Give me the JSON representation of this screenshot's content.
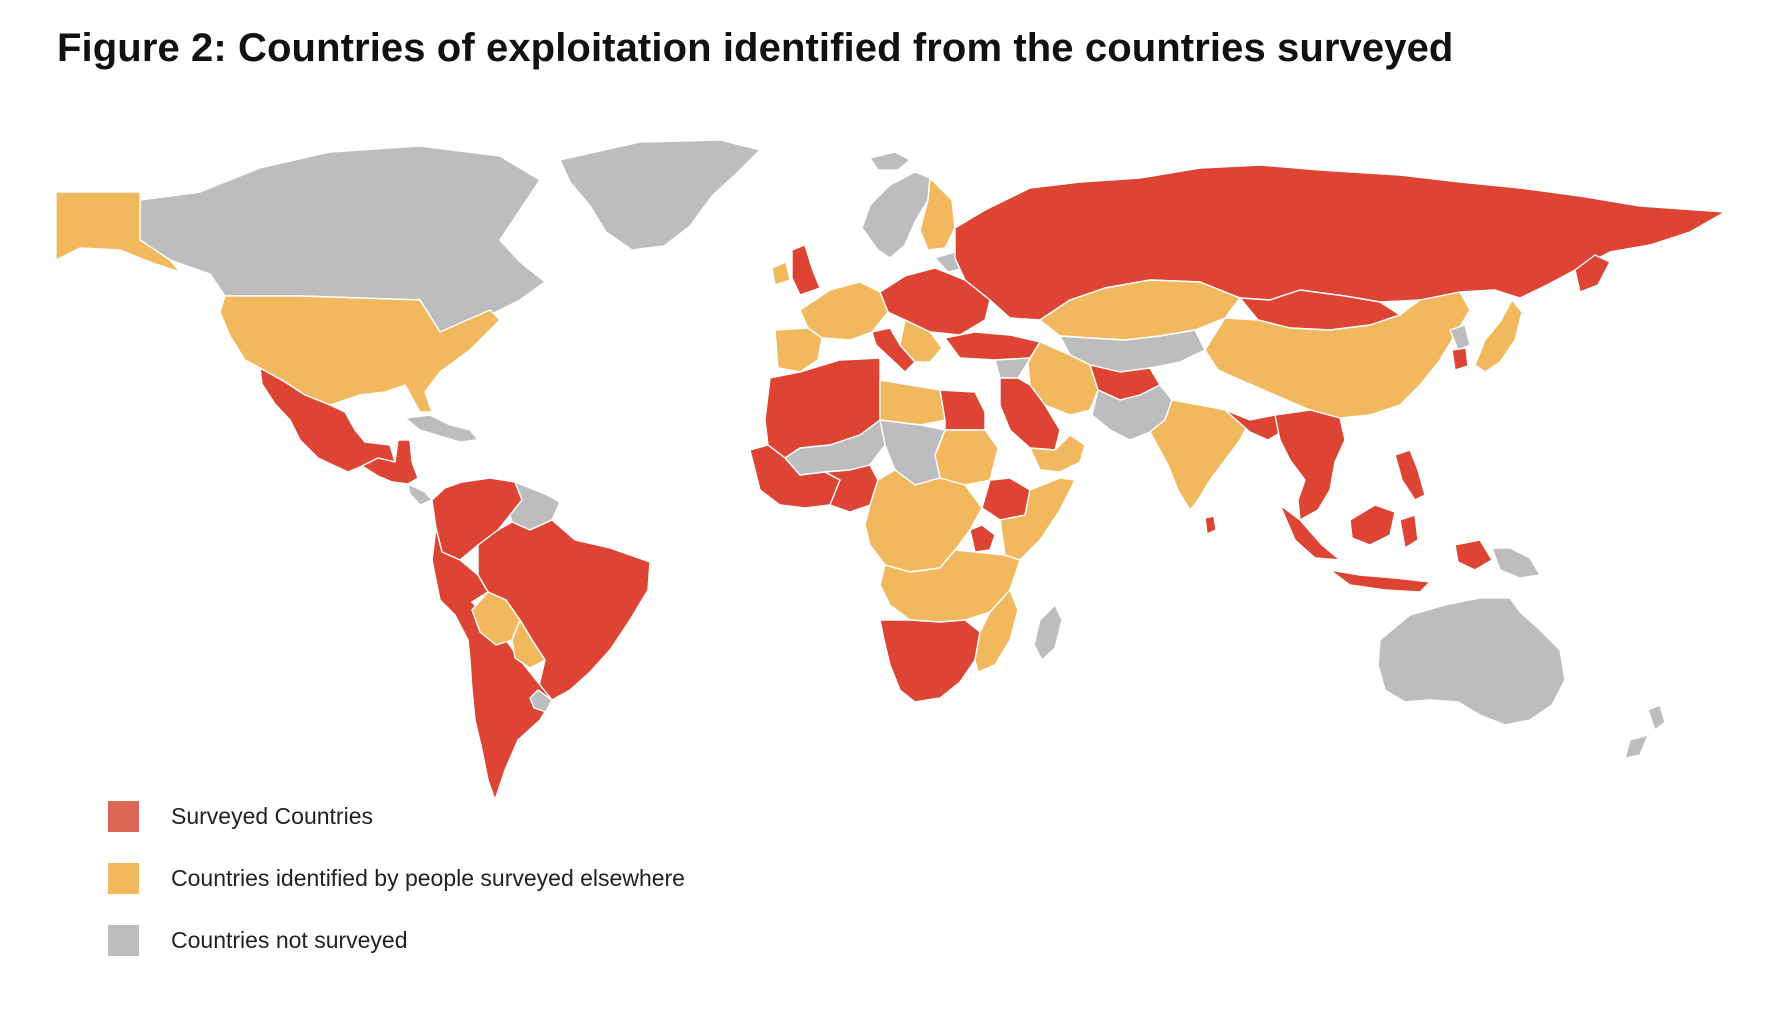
{
  "title": "Figure 2: Countries of exploitation identified from the countries surveyed",
  "colors": {
    "surveyed": "#dd4433",
    "identified": "#f1b85d",
    "not_surveyed": "#bdbdbf",
    "border": "#ffffff"
  },
  "legend": [
    {
      "label": "Surveyed Countries",
      "color": "#dd6655",
      "category": "surveyed"
    },
    {
      "label": "Countries identified by people surveyed elsewhere",
      "color": "#f1b85d",
      "category": "identified"
    },
    {
      "label": "Countries not surveyed",
      "color": "#bdbdbf",
      "category": "not_surveyed"
    }
  ],
  "regions": [
    {
      "name": "greenland",
      "category": "not_surveyed"
    },
    {
      "name": "canada",
      "category": "not_surveyed"
    },
    {
      "name": "alaska",
      "category": "identified"
    },
    {
      "name": "usa",
      "category": "identified"
    },
    {
      "name": "mexico",
      "category": "surveyed"
    },
    {
      "name": "central-america",
      "category": "surveyed"
    },
    {
      "name": "caribbean",
      "category": "not_surveyed"
    },
    {
      "name": "colombia-venezuela",
      "category": "surveyed"
    },
    {
      "name": "guianas",
      "category": "not_surveyed"
    },
    {
      "name": "brazil",
      "category": "surveyed"
    },
    {
      "name": "peru-chile-argentina",
      "category": "surveyed"
    },
    {
      "name": "bolivia",
      "category": "identified"
    },
    {
      "name": "paraguay",
      "category": "identified"
    },
    {
      "name": "uruguay",
      "category": "not_surveyed"
    },
    {
      "name": "iceland",
      "category": "not_surveyed"
    },
    {
      "name": "uk",
      "category": "surveyed"
    },
    {
      "name": "ireland",
      "category": "identified"
    },
    {
      "name": "scandinavia",
      "category": "not_surveyed"
    },
    {
      "name": "finland",
      "category": "identified"
    },
    {
      "name": "western-europe",
      "category": "identified"
    },
    {
      "name": "iberia",
      "category": "identified"
    },
    {
      "name": "eastern-europe",
      "category": "surveyed"
    },
    {
      "name": "baltics",
      "category": "not_surveyed"
    },
    {
      "name": "italy",
      "category": "surveyed"
    },
    {
      "name": "balkans",
      "category": "identified"
    },
    {
      "name": "turkey",
      "category": "surveyed"
    },
    {
      "name": "russia",
      "category": "surveyed"
    },
    {
      "name": "kazakhstan",
      "category": "identified"
    },
    {
      "name": "central-asia",
      "category": "not_surveyed"
    },
    {
      "name": "mongolia",
      "category": "surveyed"
    },
    {
      "name": "china",
      "category": "identified"
    },
    {
      "name": "korea",
      "category": "not_surveyed"
    },
    {
      "name": "south-korea",
      "category": "surveyed"
    },
    {
      "name": "japan",
      "category": "identified"
    },
    {
      "name": "iran",
      "category": "identified"
    },
    {
      "name": "afghanistan",
      "category": "surveyed"
    },
    {
      "name": "pakistan",
      "category": "not_surveyed"
    },
    {
      "name": "india",
      "category": "identified"
    },
    {
      "name": "sri-lanka",
      "category": "surveyed"
    },
    {
      "name": "nepal-bangladesh",
      "category": "surveyed"
    },
    {
      "name": "southeast-asia",
      "category": "surveyed"
    },
    {
      "name": "philippines",
      "category": "surveyed"
    },
    {
      "name": "indonesia",
      "category": "surveyed"
    },
    {
      "name": "papua-new-guinea",
      "category": "not_surveyed"
    },
    {
      "name": "australia",
      "category": "not_surveyed"
    },
    {
      "name": "new-zealand",
      "category": "not_surveyed"
    },
    {
      "name": "levant",
      "category": "not_surveyed"
    },
    {
      "name": "middle-east",
      "category": "surveyed"
    },
    {
      "name": "oman-yemen",
      "category": "identified"
    },
    {
      "name": "north-africa-west",
      "category": "surveyed"
    },
    {
      "name": "libya",
      "category": "identified"
    },
    {
      "name": "egypt",
      "category": "surveyed"
    },
    {
      "name": "sudan",
      "category": "identified"
    },
    {
      "name": "sahel",
      "category": "not_surveyed"
    },
    {
      "name": "west-africa-coast",
      "category": "surveyed"
    },
    {
      "name": "nigeria",
      "category": "surveyed"
    },
    {
      "name": "chad",
      "category": "not_surveyed"
    },
    {
      "name": "ethiopia",
      "category": "surveyed"
    },
    {
      "name": "somalia-kenya",
      "category": "identified"
    },
    {
      "name": "central-africa",
      "category": "identified"
    },
    {
      "name": "uganda",
      "category": "surveyed"
    },
    {
      "name": "angola-zambia",
      "category": "identified"
    },
    {
      "name": "southern-africa",
      "category": "surveyed"
    },
    {
      "name": "mozambique",
      "category": "identified"
    },
    {
      "name": "madagascar",
      "category": "not_surveyed"
    }
  ]
}
